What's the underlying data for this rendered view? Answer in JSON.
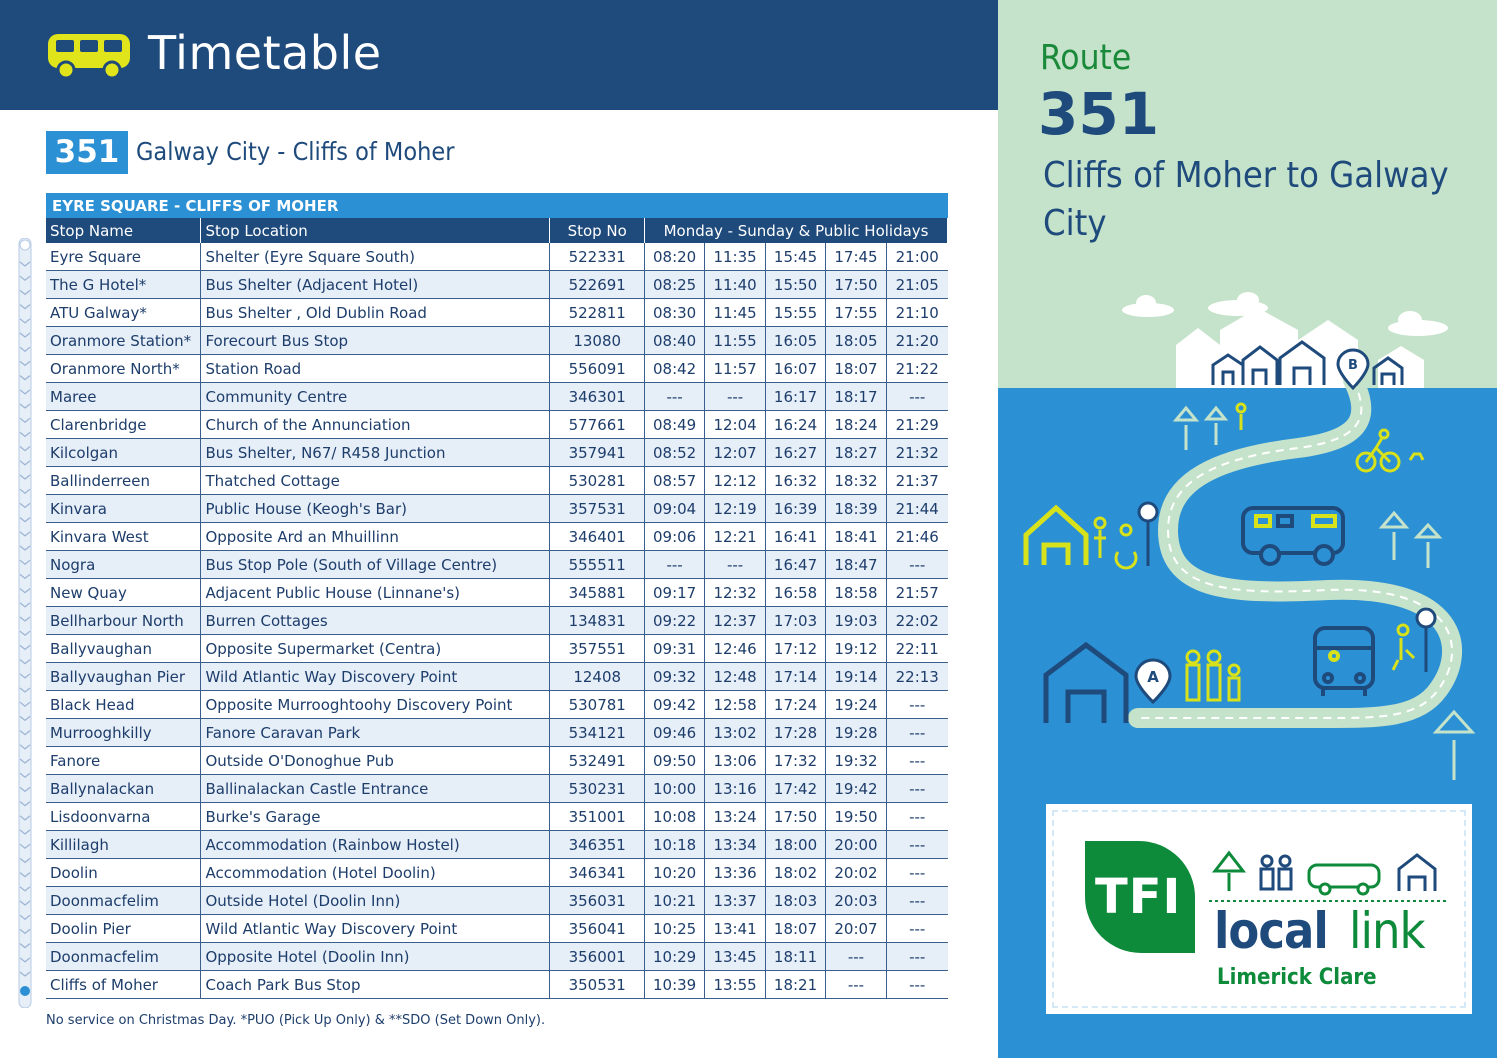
{
  "header": {
    "title": "Timetable"
  },
  "route": {
    "number": "351",
    "name": "Galway City - Cliffs of Moher"
  },
  "table": {
    "section_title": "EYRE SQUARE - CLIFFS OF MOHER",
    "columns": {
      "stop_name": "Stop Name",
      "stop_location": "Stop Location",
      "stop_no": "Stop No",
      "days": "Monday - Sunday & Public Holidays"
    },
    "rows": [
      {
        "name": "Eyre Square",
        "location": "Shelter (Eyre Square South)",
        "no": "522331",
        "times": [
          "08:20",
          "11:35",
          "15:45",
          "17:45",
          "21:00"
        ]
      },
      {
        "name": "The G Hotel*",
        "location": "Bus Shelter (Adjacent Hotel)",
        "no": "522691",
        "times": [
          "08:25",
          "11:40",
          "15:50",
          "17:50",
          "21:05"
        ]
      },
      {
        "name": "ATU Galway*",
        "location": "Bus Shelter , Old Dublin Road",
        "no": "522811",
        "times": [
          "08:30",
          "11:45",
          "15:55",
          "17:55",
          "21:10"
        ]
      },
      {
        "name": "Oranmore Station*",
        "location": "Forecourt Bus Stop",
        "no": "13080",
        "times": [
          "08:40",
          "11:55",
          "16:05",
          "18:05",
          "21:20"
        ]
      },
      {
        "name": "Oranmore North*",
        "location": "Station Road",
        "no": "556091",
        "times": [
          "08:42",
          "11:57",
          "16:07",
          "18:07",
          "21:22"
        ]
      },
      {
        "name": "Maree",
        "location": "Community Centre",
        "no": "346301",
        "times": [
          "---",
          "---",
          "16:17",
          "18:17",
          "---"
        ]
      },
      {
        "name": "Clarenbridge",
        "location": "Church of the Annunciation",
        "no": "577661",
        "times": [
          "08:49",
          "12:04",
          "16:24",
          "18:24",
          "21:29"
        ]
      },
      {
        "name": "Kilcolgan",
        "location": "Bus Shelter, N67/ R458 Junction",
        "no": "357941",
        "times": [
          "08:52",
          "12:07",
          "16:27",
          "18:27",
          "21:32"
        ]
      },
      {
        "name": "Ballinderreen",
        "location": "Thatched Cottage",
        "no": "530281",
        "times": [
          "08:57",
          "12:12",
          "16:32",
          "18:32",
          "21:37"
        ]
      },
      {
        "name": "Kinvara",
        "location": "Public House (Keogh's Bar)",
        "no": "357531",
        "times": [
          "09:04",
          "12:19",
          "16:39",
          "18:39",
          "21:44"
        ]
      },
      {
        "name": "Kinvara West",
        "location": "Opposite Ard an Mhuillinn",
        "no": "346401",
        "times": [
          "09:06",
          "12:21",
          "16:41",
          "18:41",
          "21:46"
        ]
      },
      {
        "name": "Nogra",
        "location": "Bus Stop Pole (South of Village Centre)",
        "no": "555511",
        "times": [
          "---",
          "---",
          "16:47",
          "18:47",
          "---"
        ]
      },
      {
        "name": "New Quay",
        "location": "Adjacent Public House (Linnane's)",
        "no": "345881",
        "times": [
          "09:17",
          "12:32",
          "16:58",
          "18:58",
          "21:57"
        ]
      },
      {
        "name": "Bellharbour North",
        "location": "Burren Cottages",
        "no": "134831",
        "times": [
          "09:22",
          "12:37",
          "17:03",
          "19:03",
          "22:02"
        ]
      },
      {
        "name": "Ballyvaughan",
        "location": "Opposite Supermarket (Centra)",
        "no": "357551",
        "times": [
          "09:31",
          "12:46",
          "17:12",
          "19:12",
          "22:11"
        ]
      },
      {
        "name": "Ballyvaughan Pier",
        "location": "Wild Atlantic Way Discovery Point",
        "no": "12408",
        "times": [
          "09:32",
          "12:48",
          "17:14",
          "19:14",
          "22:13"
        ]
      },
      {
        "name": "Black Head",
        "location": "Opposite Murrooghtoohy Discovery Point",
        "no": "530781",
        "times": [
          "09:42",
          "12:58",
          "17:24",
          "19:24",
          "---"
        ]
      },
      {
        "name": "Murrooghkilly",
        "location": "Fanore Caravan Park",
        "no": "534121",
        "times": [
          "09:46",
          "13:02",
          "17:28",
          "19:28",
          "---"
        ]
      },
      {
        "name": "Fanore",
        "location": "Outside O'Donoghue Pub",
        "no": "532491",
        "times": [
          "09:50",
          "13:06",
          "17:32",
          "19:32",
          "---"
        ]
      },
      {
        "name": "Ballynalackan",
        "location": "Ballinalackan Castle Entrance",
        "no": "530231",
        "times": [
          "10:00",
          "13:16",
          "17:42",
          "19:42",
          "---"
        ]
      },
      {
        "name": "Lisdoonvarna",
        "location": "Burke's Garage",
        "no": "351001",
        "times": [
          "10:08",
          "13:24",
          "17:50",
          "19:50",
          "---"
        ]
      },
      {
        "name": "Killilagh",
        "location": "Accommodation (Rainbow Hostel)",
        "no": "346351",
        "times": [
          "10:18",
          "13:34",
          "18:00",
          "20:00",
          "---"
        ]
      },
      {
        "name": "Doolin",
        "location": "Accommodation (Hotel Doolin)",
        "no": "346341",
        "times": [
          "10:20",
          "13:36",
          "18:02",
          "20:02",
          "---"
        ]
      },
      {
        "name": "Doonmacfelim",
        "location": "Outside Hotel (Doolin Inn)",
        "no": "356031",
        "times": [
          "10:21",
          "13:37",
          "18:03",
          "20:03",
          "---"
        ]
      },
      {
        "name": "Doolin Pier",
        "location": "Wild Atlantic Way Discovery Point",
        "no": "356041",
        "times": [
          "10:25",
          "13:41",
          "18:07",
          "20:07",
          "---"
        ]
      },
      {
        "name": "Doonmacfelim",
        "location": "Opposite Hotel (Doolin Inn)",
        "no": "356001",
        "times": [
          "10:29",
          "13:45",
          "18:11",
          "---",
          "---"
        ]
      },
      {
        "name": "Cliffs of Moher",
        "location": "Coach Park Bus Stop",
        "no": "350531",
        "times": [
          "10:39",
          "13:55",
          "18:21",
          "---",
          "---"
        ]
      }
    ],
    "footnote": "No service on Christmas Day. *PUO (Pick Up Only) & **SDO (Set Down Only)."
  },
  "panel": {
    "route_word": "Route",
    "route_number": "351",
    "description": "Cliffs of Moher to Galway City",
    "map_labels": {
      "start": "A",
      "end": "B"
    }
  },
  "logo": {
    "tfi": "TFI",
    "local": "local",
    "link": "link",
    "region": "Limerick Clare"
  },
  "colors": {
    "navy": "#1e4a7c",
    "blue": "#2b90d4",
    "green": "#0d8a3a",
    "mint": "#c5e3cb",
    "yellow": "#d8e21a"
  }
}
